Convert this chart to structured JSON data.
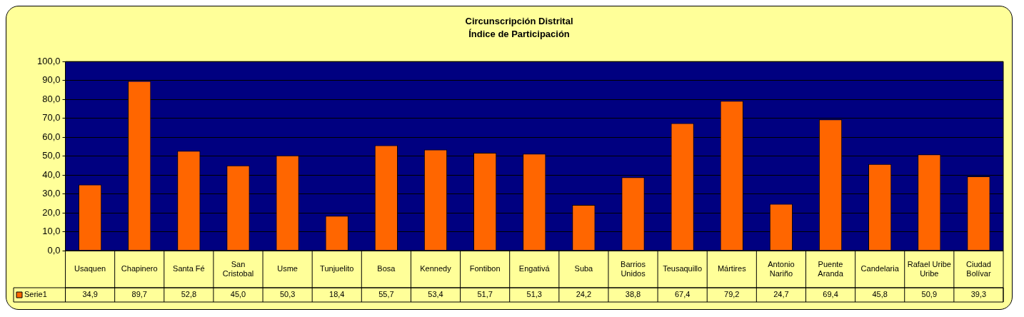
{
  "chart_data": {
    "type": "bar",
    "title": "Circunscripción Distrital",
    "subtitle": "Índice de Participación",
    "categories": [
      "Usaquen",
      "Chapinero",
      "Santa Fé",
      "San Cristobal",
      "Usme",
      "Tunjuelito",
      "Bosa",
      "Kennedy",
      "Fontibon",
      "Engativá",
      "Suba",
      "Barrios Unidos",
      "Teusaquillo",
      "Mártires",
      "Antonio Nariño",
      "Puente Aranda",
      "Candelaria",
      "Rafael Uribe Uribe",
      "Ciudad Bolívar"
    ],
    "series": [
      {
        "name": "Serie1",
        "color": "#ff6600",
        "values": [
          34.9,
          89.7,
          52.8,
          45.0,
          50.3,
          18.4,
          55.7,
          53.4,
          51.7,
          51.3,
          24.2,
          38.8,
          67.4,
          79.2,
          24.7,
          69.4,
          45.8,
          50.9,
          39.3
        ]
      }
    ],
    "ylim": [
      0,
      100
    ],
    "yticks": [
      {
        "value": 0,
        "label": "0,0"
      },
      {
        "value": 10,
        "label": "10,0"
      },
      {
        "value": 20,
        "label": "20,0"
      },
      {
        "value": 30,
        "label": "30,0"
      },
      {
        "value": 40,
        "label": "40,0"
      },
      {
        "value": 50,
        "label": "50,0"
      },
      {
        "value": 60,
        "label": "60,0"
      },
      {
        "value": 70,
        "label": "70,0"
      },
      {
        "value": 80,
        "label": "80,0"
      },
      {
        "value": 90,
        "label": "90,0"
      },
      {
        "value": 100,
        "label": "100,0"
      }
    ],
    "grid": "y",
    "legend": "bottom",
    "value_labels": [
      "34,9",
      "89,7",
      "52,8",
      "45,0",
      "50,3",
      "18,4",
      "55,7",
      "53,4",
      "51,7",
      "51,3",
      "24,2",
      "38,8",
      "67,4",
      "79,2",
      "24,7",
      "69,4",
      "45,8",
      "50,9",
      "39,3"
    ]
  }
}
